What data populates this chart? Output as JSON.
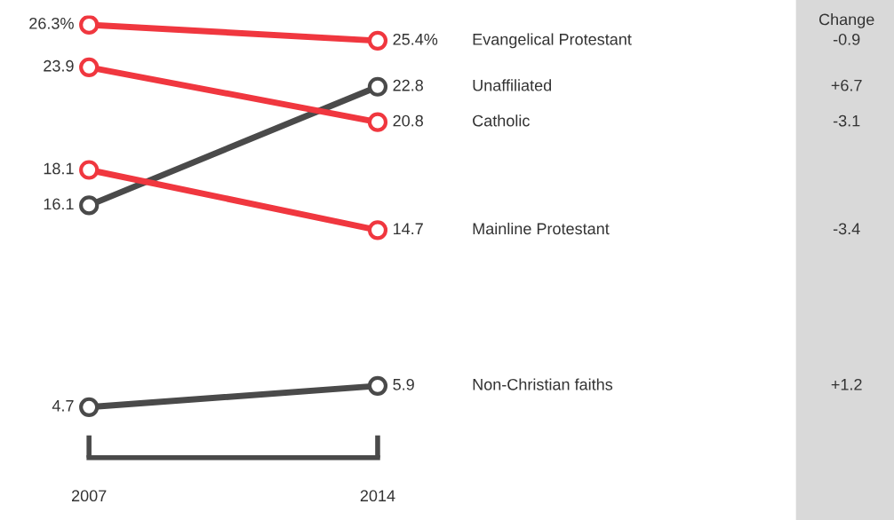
{
  "chart_data": {
    "type": "line",
    "categories": [
      "2007",
      "2014"
    ],
    "series": [
      {
        "name": "Evangelical Protestant",
        "color": "#f0373f",
        "values": [
          26.3,
          25.4
        ],
        "value_labels": [
          "26.3%",
          "25.4%"
        ]
      },
      {
        "name": "Unaffiliated",
        "color": "#4a4a4a",
        "values": [
          16.1,
          22.8
        ],
        "value_labels": [
          "16.1",
          "22.8"
        ]
      },
      {
        "name": "Catholic",
        "color": "#f0373f",
        "values": [
          23.9,
          20.8
        ],
        "value_labels": [
          "23.9",
          "20.8"
        ]
      },
      {
        "name": "Mainline Protestant",
        "color": "#f0373f",
        "values": [
          18.1,
          14.7
        ],
        "value_labels": [
          "18.1",
          "14.7"
        ]
      },
      {
        "name": "Non-Christian faiths",
        "color": "#4a4a4a",
        "values": [
          4.7,
          5.9
        ],
        "value_labels": [
          "4.7",
          "5.9"
        ]
      }
    ],
    "annotations": [
      "Change",
      "-0.9",
      "+6.7",
      "-3.1",
      "-3.4",
      "+1.2"
    ],
    "marker": "circle",
    "line_style": "solid",
    "grid": false,
    "legend": false
  }
}
